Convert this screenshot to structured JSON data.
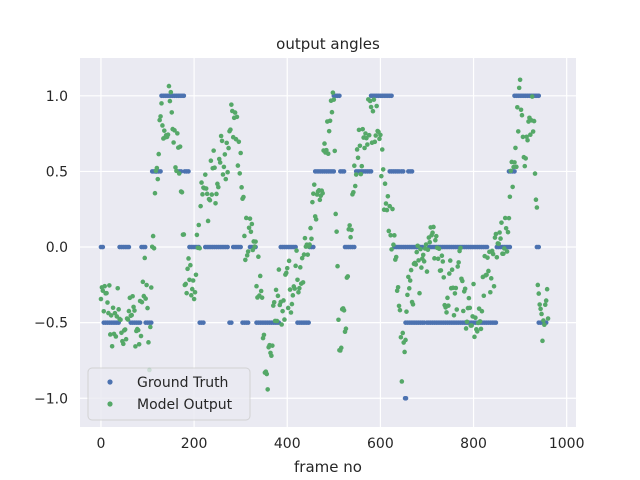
{
  "chart_data": {
    "type": "scatter",
    "title": "output angles",
    "xlabel": "frame no",
    "ylabel": "",
    "xlim": [
      -45,
      1020
    ],
    "ylim": [
      -1.19,
      1.25
    ],
    "xticks": [
      0,
      200,
      400,
      600,
      800,
      1000
    ],
    "xtick_labels": [
      "0",
      "200",
      "400",
      "600",
      "800",
      "1000"
    ],
    "yticks": [
      -1.0,
      -0.5,
      0.0,
      0.5,
      1.0
    ],
    "ytick_labels": [
      "−1.0",
      "−0.5",
      "0.0",
      "0.5",
      "1.0"
    ],
    "grid": true,
    "legend_position": "lower-left",
    "colors": {
      "background": "#eaeaf2",
      "grid": "#ffffff",
      "ground_truth": "#4c72b0",
      "model_output": "#55a868"
    },
    "series": [
      {
        "name": "Ground Truth",
        "segments": [
          {
            "from": 0,
            "to": 5,
            "value": 0.0
          },
          {
            "from": 6,
            "to": 38,
            "value": -0.5
          },
          {
            "from": 40,
            "to": 62,
            "value": 0.0
          },
          {
            "from": 64,
            "to": 85,
            "value": -0.5
          },
          {
            "from": 87,
            "to": 95,
            "value": 0.0
          },
          {
            "from": 96,
            "to": 108,
            "value": -0.5
          },
          {
            "from": 110,
            "to": 118,
            "value": 0.5
          },
          {
            "from": 120,
            "to": 128,
            "value": 0.5
          },
          {
            "from": 130,
            "to": 178,
            "value": 1.0
          },
          {
            "from": 180,
            "to": 188,
            "value": 0.5
          },
          {
            "from": 190,
            "to": 210,
            "value": 0.0
          },
          {
            "from": 212,
            "to": 222,
            "value": -0.5
          },
          {
            "from": 224,
            "to": 275,
            "value": 0.0
          },
          {
            "from": 276,
            "to": 282,
            "value": -0.5
          },
          {
            "from": 284,
            "to": 302,
            "value": 0.0
          },
          {
            "from": 304,
            "to": 318,
            "value": -0.5
          },
          {
            "from": 320,
            "to": 332,
            "value": 0.0
          },
          {
            "from": 334,
            "to": 384,
            "value": -0.5
          },
          {
            "from": 386,
            "to": 420,
            "value": 0.0
          },
          {
            "from": 422,
            "to": 446,
            "value": -0.5
          },
          {
            "from": 448,
            "to": 458,
            "value": 0.0
          },
          {
            "from": 460,
            "to": 500,
            "value": 0.5
          },
          {
            "from": 500,
            "to": 512,
            "value": 1.0
          },
          {
            "from": 514,
            "to": 522,
            "value": 0.5
          },
          {
            "from": 524,
            "to": 546,
            "value": 0.0
          },
          {
            "from": 548,
            "to": 580,
            "value": 0.5
          },
          {
            "from": 580,
            "to": 625,
            "value": 1.0
          },
          {
            "from": 620,
            "to": 640,
            "value": 0.5
          },
          {
            "from": 645,
            "to": 652,
            "value": 0.5
          },
          {
            "from": 660,
            "to": 668,
            "value": 0.5
          },
          {
            "from": 630,
            "to": 690,
            "value": 0.0
          },
          {
            "from": 654,
            "to": 695,
            "value": -0.5
          },
          {
            "from": 700,
            "to": 850,
            "value": -0.5
          },
          {
            "from": 705,
            "to": 830,
            "value": 0.0
          },
          {
            "from": 850,
            "to": 880,
            "value": 0.0
          },
          {
            "from": 876,
            "to": 888,
            "value": 0.5
          },
          {
            "from": 888,
            "to": 940,
            "value": 1.0
          },
          {
            "from": 936,
            "to": 942,
            "value": 0.0
          },
          {
            "from": 940,
            "to": 958,
            "value": -0.5
          }
        ],
        "extra_points": [
          [
            653,
            -1.0
          ],
          [
            655,
            -1.0
          ],
          [
            168,
            0.5
          ],
          [
            172,
            0.5
          ],
          [
            118,
            0.5
          ]
        ]
      },
      {
        "name": "Model Output",
        "waypoints": [
          [
            0,
            -0.37
          ],
          [
            15,
            -0.36
          ],
          [
            20,
            -0.45
          ],
          [
            25,
            -0.6
          ],
          [
            35,
            -0.4
          ],
          [
            40,
            -0.5
          ],
          [
            45,
            -0.65
          ],
          [
            55,
            -0.55
          ],
          [
            60,
            -0.3
          ],
          [
            70,
            -0.45
          ],
          [
            80,
            -0.6
          ],
          [
            90,
            -0.35
          ],
          [
            95,
            -0.2
          ],
          [
            100,
            -0.45
          ],
          [
            105,
            -0.7
          ],
          [
            110,
            0.05
          ],
          [
            115,
            0.2
          ],
          [
            120,
            0.45
          ],
          [
            125,
            0.75
          ],
          [
            130,
            0.85
          ],
          [
            135,
            0.7
          ],
          [
            140,
            0.8
          ],
          [
            150,
            0.95
          ],
          [
            160,
            0.7
          ],
          [
            170,
            0.55
          ],
          [
            175,
            0.3
          ],
          [
            180,
            -0.2
          ],
          [
            185,
            -0.25
          ],
          [
            190,
            -0.1
          ],
          [
            200,
            -0.35
          ],
          [
            210,
            0.05
          ],
          [
            215,
            0.3
          ],
          [
            220,
            0.45
          ],
          [
            230,
            0.2
          ],
          [
            240,
            0.55
          ],
          [
            250,
            0.35
          ],
          [
            260,
            0.65
          ],
          [
            270,
            0.6
          ],
          [
            280,
            0.85
          ],
          [
            290,
            0.8
          ],
          [
            300,
            0.45
          ],
          [
            310,
            0.1
          ],
          [
            320,
            0.0
          ],
          [
            330,
            -0.05
          ],
          [
            340,
            -0.25
          ],
          [
            350,
            -0.6
          ],
          [
            355,
            -0.9
          ],
          [
            360,
            -0.7
          ],
          [
            370,
            -0.45
          ],
          [
            380,
            -0.25
          ],
          [
            390,
            -0.35
          ],
          [
            400,
            -0.2
          ],
          [
            410,
            -0.35
          ],
          [
            420,
            -0.15
          ],
          [
            430,
            -0.25
          ],
          [
            440,
            -0.1
          ],
          [
            450,
            0.2
          ],
          [
            460,
            0.3
          ],
          [
            470,
            0.25
          ],
          [
            480,
            0.55
          ],
          [
            490,
            0.85
          ],
          [
            500,
            1.0
          ],
          [
            505,
            0.25
          ],
          [
            510,
            -0.5
          ],
          [
            515,
            -0.7
          ],
          [
            520,
            -0.4
          ],
          [
            525,
            -0.55
          ],
          [
            530,
            -0.1
          ],
          [
            540,
            0.3
          ],
          [
            550,
            0.55
          ],
          [
            560,
            0.65
          ],
          [
            570,
            0.75
          ],
          [
            580,
            0.9
          ],
          [
            590,
            0.75
          ],
          [
            600,
            0.6
          ],
          [
            610,
            0.3
          ],
          [
            620,
            0.1
          ],
          [
            630,
            0.05
          ],
          [
            640,
            -0.3
          ],
          [
            645,
            -0.8
          ],
          [
            650,
            -0.7
          ],
          [
            660,
            -0.35
          ],
          [
            670,
            -0.2
          ],
          [
            680,
            -0.1
          ],
          [
            690,
            -0.25
          ],
          [
            700,
            0.0
          ],
          [
            710,
            0.2
          ],
          [
            720,
            0.05
          ],
          [
            730,
            -0.1
          ],
          [
            740,
            -0.3
          ],
          [
            750,
            -0.15
          ],
          [
            760,
            -0.35
          ],
          [
            770,
            -0.1
          ],
          [
            780,
            -0.25
          ],
          [
            790,
            -0.45
          ],
          [
            800,
            -0.35
          ],
          [
            810,
            -0.6
          ],
          [
            820,
            -0.3
          ],
          [
            830,
            -0.05
          ],
          [
            840,
            -0.2
          ],
          [
            850,
            0.0
          ],
          [
            860,
            0.05
          ],
          [
            870,
            0.1
          ],
          [
            880,
            0.45
          ],
          [
            890,
            0.7
          ],
          [
            900,
            0.9
          ],
          [
            910,
            0.55
          ],
          [
            920,
            0.75
          ],
          [
            930,
            0.85
          ],
          [
            940,
            -0.4
          ],
          [
            950,
            -0.45
          ],
          [
            960,
            -0.35
          ]
        ]
      }
    ]
  }
}
